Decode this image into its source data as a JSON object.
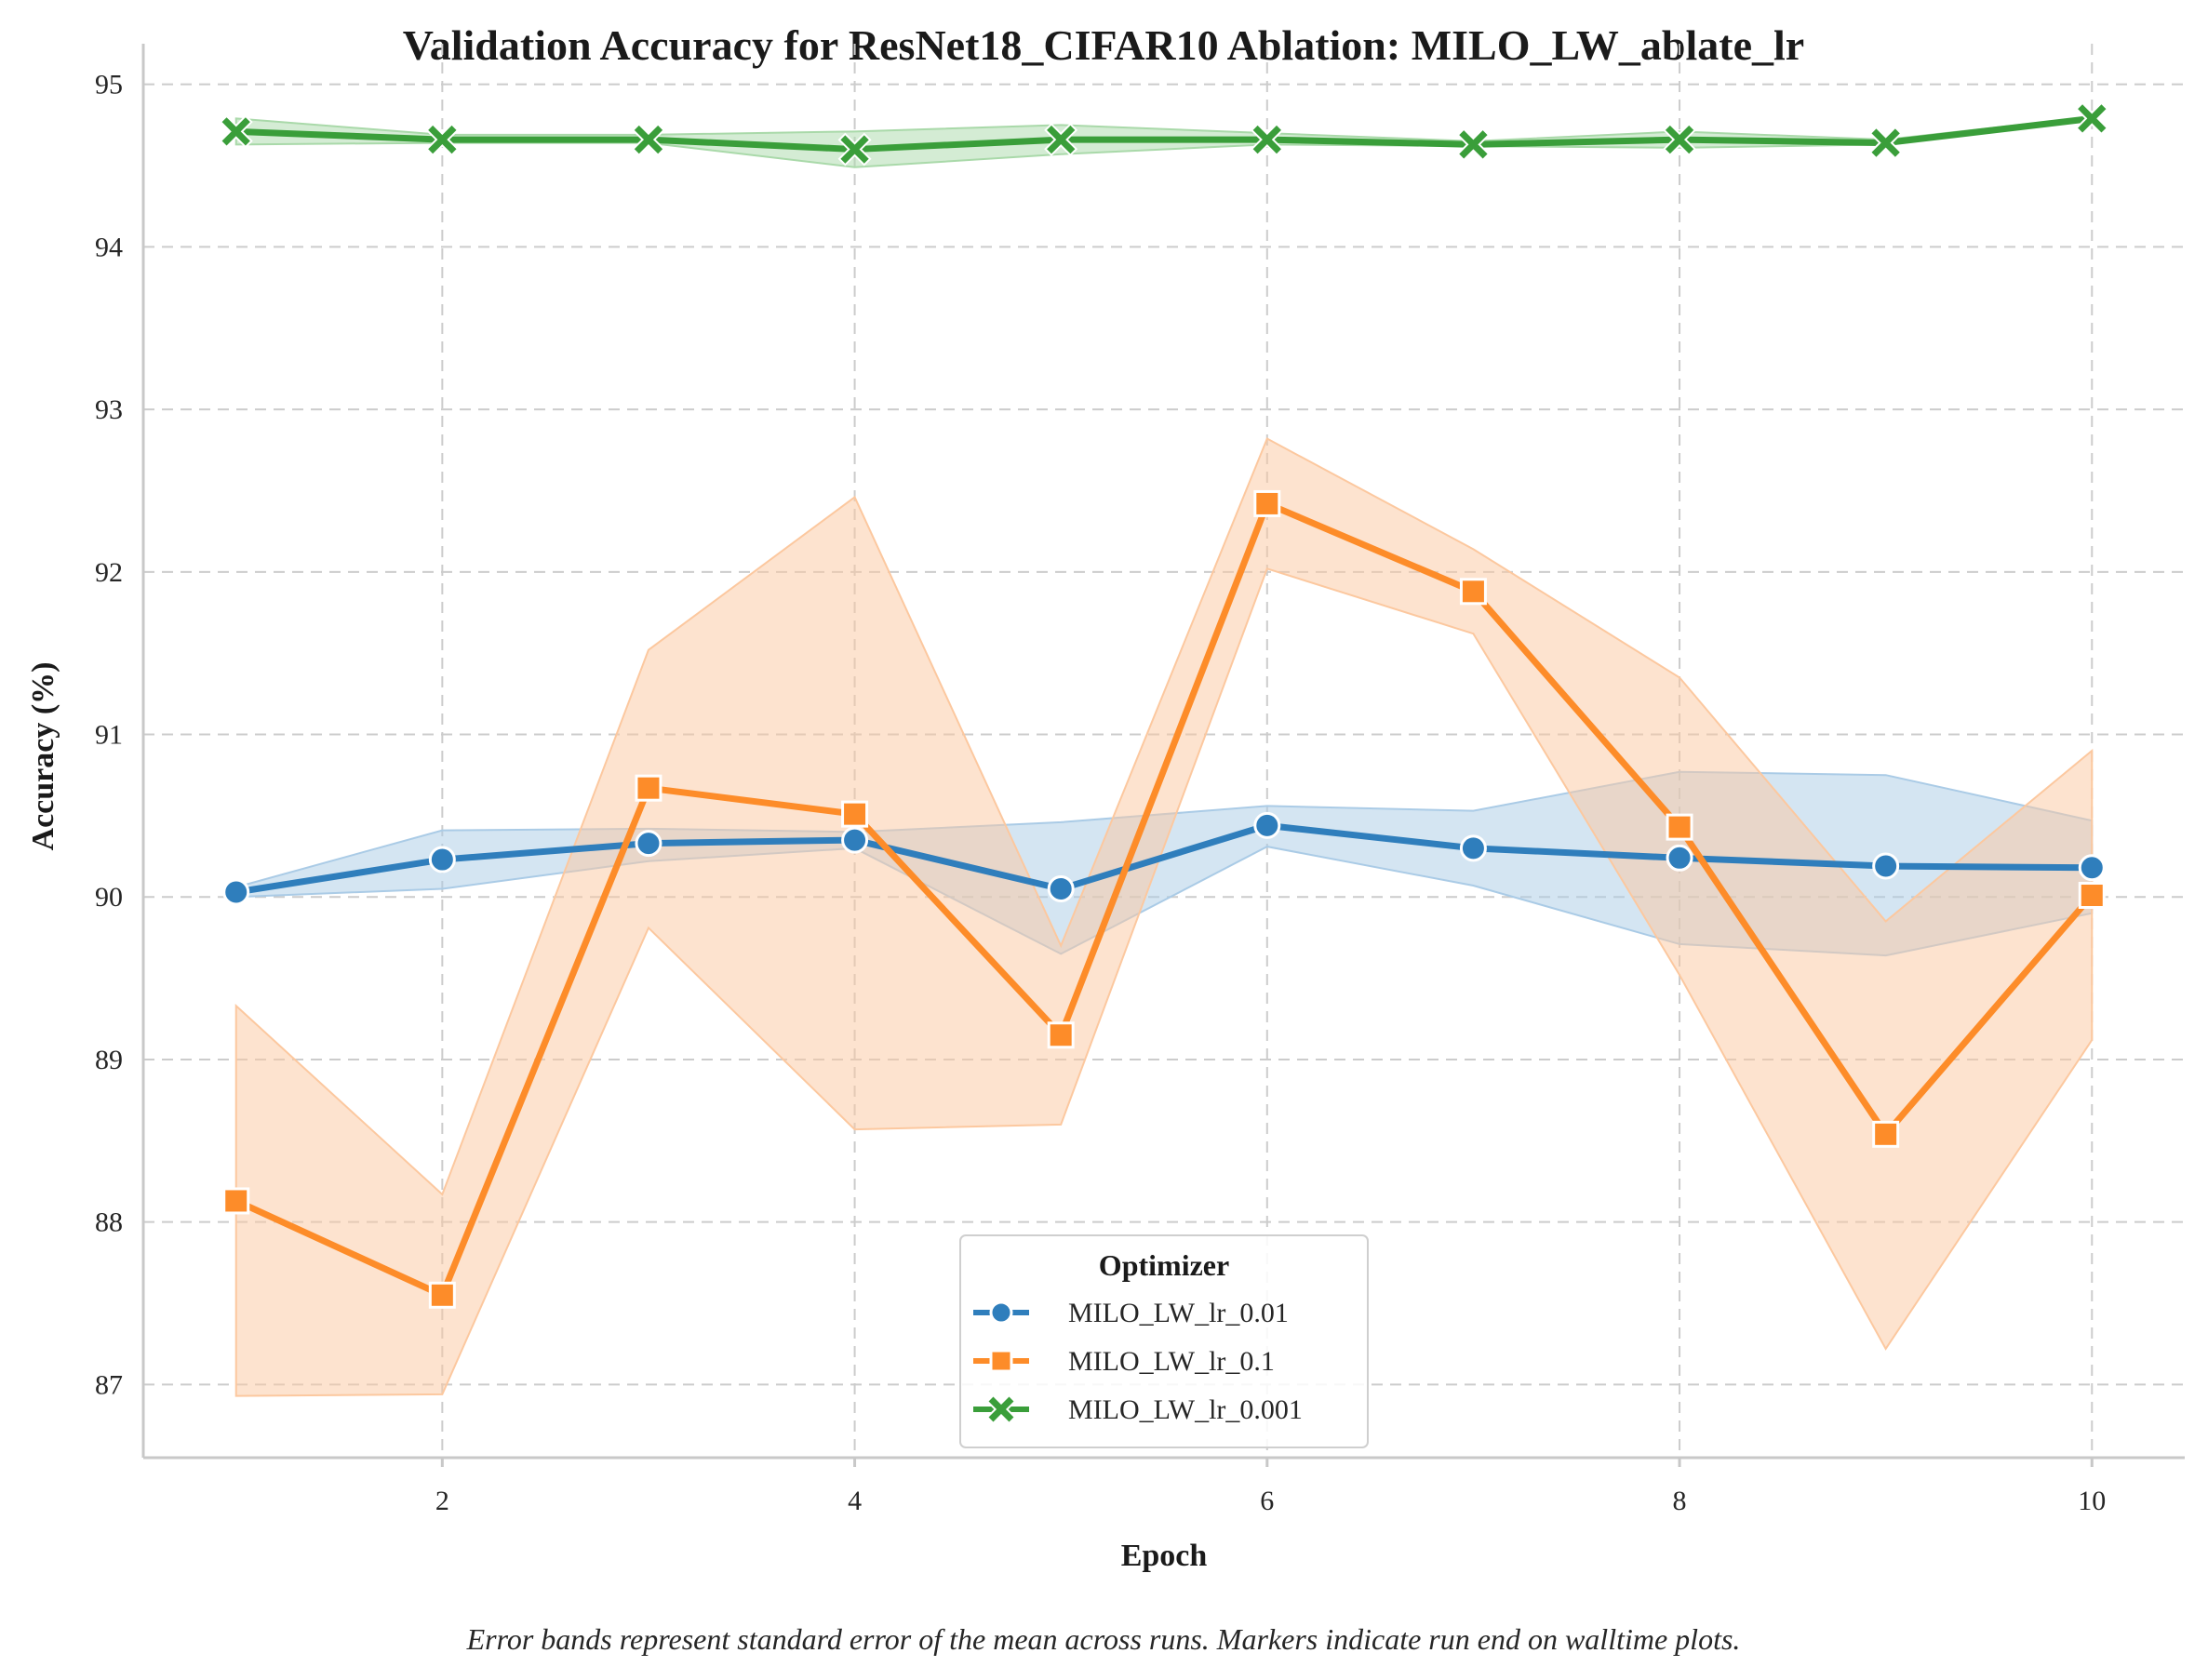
{
  "chart_data": {
    "type": "line",
    "title": "Validation Accuracy for ResNet18_CIFAR10 Ablation: MILO_LW_ablate_lr",
    "xlabel": "Epoch",
    "ylabel": "Accuracy (%)",
    "caption": "Error bands represent standard error of the mean across runs. Markers indicate run end on walltime plots.",
    "xlim": [
      0.55,
      10.45
    ],
    "ylim": [
      86.55,
      95.25
    ],
    "xticks": [
      2,
      4,
      6,
      8,
      10
    ],
    "yticks": [
      87,
      88,
      89,
      90,
      91,
      92,
      93,
      94,
      95
    ],
    "grid": true,
    "legend": {
      "title": "Optimizer",
      "placement": "bottom-center"
    },
    "x": [
      1,
      2,
      3,
      4,
      5,
      6,
      7,
      8,
      9,
      10
    ],
    "series": [
      {
        "name": "MILO_LW_lr_0.01",
        "color": "#2f7ebc",
        "band_color": "#aacbe6",
        "marker": "circle",
        "values": [
          90.03,
          90.23,
          90.33,
          90.35,
          90.05,
          90.44,
          90.3,
          90.24,
          90.19,
          90.18
        ],
        "lower": [
          90.0,
          90.05,
          90.22,
          90.3,
          89.65,
          90.31,
          90.07,
          89.71,
          89.64,
          89.9
        ],
        "upper": [
          90.06,
          90.41,
          90.42,
          90.4,
          90.46,
          90.56,
          90.53,
          90.77,
          90.75,
          90.47
        ]
      },
      {
        "name": "MILO_LW_lr_0.1",
        "color": "#fd8c29",
        "band_color": "#fcc89f",
        "marker": "square",
        "values": [
          88.13,
          87.55,
          90.67,
          90.51,
          89.15,
          92.42,
          91.88,
          90.43,
          88.54,
          90.01
        ],
        "lower": [
          86.93,
          86.94,
          89.81,
          88.57,
          88.6,
          92.02,
          91.62,
          89.52,
          87.22,
          89.12
        ],
        "upper": [
          89.33,
          88.17,
          91.52,
          92.46,
          89.7,
          92.82,
          92.14,
          91.35,
          89.85,
          90.9
        ]
      },
      {
        "name": "MILO_LW_lr_0.001",
        "color": "#3a9e3a",
        "band_color": "#a9d9a9",
        "marker": "x",
        "values": [
          94.71,
          94.66,
          94.66,
          94.6,
          94.66,
          94.66,
          94.63,
          94.66,
          94.64,
          94.79
        ],
        "lower": [
          94.63,
          94.64,
          94.64,
          94.49,
          94.57,
          94.63,
          94.62,
          94.61,
          94.63,
          94.78
        ],
        "upper": [
          94.79,
          94.69,
          94.69,
          94.71,
          94.75,
          94.7,
          94.65,
          94.71,
          94.66,
          94.8
        ]
      }
    ]
  }
}
